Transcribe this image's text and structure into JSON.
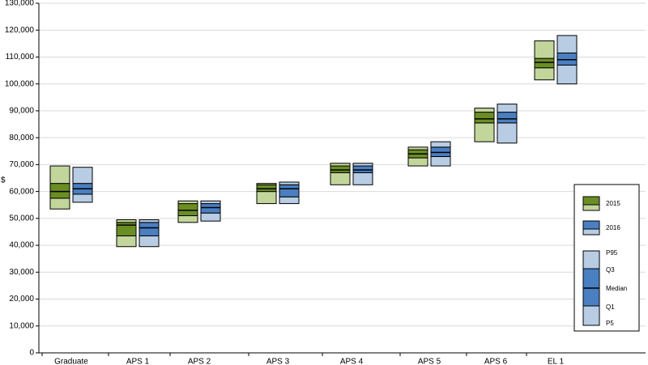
{
  "chart_data": {
    "type": "box",
    "ylabel": "$",
    "ylim": [
      0,
      130000
    ],
    "ytick_step": 10000,
    "yticks": [
      "0",
      "10,000",
      "20,000",
      "30,000",
      "40,000",
      "50,000",
      "60,000",
      "70,000",
      "80,000",
      "90,000",
      "100,000",
      "110,000",
      "120,000",
      "130,000"
    ],
    "grid": true,
    "legend_position": "right",
    "categories": [
      "Graduate",
      "APS 1",
      "APS 2",
      "APS 3",
      "APS 4",
      "APS 5",
      "APS 6",
      "EL 1"
    ],
    "series": [
      {
        "name": "2015",
        "dark_color": "#6b8e23",
        "light_color": "#c2d69b",
        "stats": [
          {
            "p5": 53500,
            "q1": 57500,
            "median": 60000,
            "q3": 63000,
            "p95": 69500
          },
          {
            "p5": 39500,
            "q1": 43500,
            "median": 47500,
            "q3": 48500,
            "p95": 49500
          },
          {
            "p5": 48500,
            "q1": 51000,
            "median": 53000,
            "q3": 55500,
            "p95": 56500
          },
          {
            "p5": 55500,
            "q1": 60000,
            "median": 61000,
            "q3": 62500,
            "p95": 63000
          },
          {
            "p5": 62500,
            "q1": 67000,
            "median": 68000,
            "q3": 69500,
            "p95": 70500
          },
          {
            "p5": 69500,
            "q1": 72500,
            "median": 74000,
            "q3": 75500,
            "p95": 76500
          },
          {
            "p5": 78500,
            "q1": 85500,
            "median": 87000,
            "q3": 89500,
            "p95": 91000
          },
          {
            "p5": 101500,
            "q1": 106000,
            "median": 108000,
            "q3": 109500,
            "p95": 116000
          }
        ]
      },
      {
        "name": "2016",
        "dark_color": "#4a7fc1",
        "light_color": "#b8cce4",
        "stats": [
          {
            "p5": 56000,
            "q1": 59000,
            "median": 61000,
            "q3": 63000,
            "p95": 69000
          },
          {
            "p5": 39500,
            "q1": 43500,
            "median": 46500,
            "q3": 48500,
            "p95": 49500
          },
          {
            "p5": 49000,
            "q1": 52000,
            "median": 54000,
            "q3": 55500,
            "p95": 56500
          },
          {
            "p5": 55500,
            "q1": 58000,
            "median": 61000,
            "q3": 62500,
            "p95": 63500
          },
          {
            "p5": 62500,
            "q1": 67000,
            "median": 68000,
            "q3": 69500,
            "p95": 70500
          },
          {
            "p5": 69500,
            "q1": 73000,
            "median": 74500,
            "q3": 76500,
            "p95": 78500
          },
          {
            "p5": 78000,
            "q1": 85500,
            "median": 87000,
            "q3": 89500,
            "p95": 92500
          },
          {
            "p5": 100000,
            "q1": 107000,
            "median": 109000,
            "q3": 111500,
            "p95": 118000
          }
        ]
      }
    ],
    "legend": {
      "series_labels": [
        "2015",
        "2016"
      ],
      "box_labels": [
        "P95",
        "Q3",
        "Median",
        "Q1",
        "P5"
      ]
    }
  }
}
